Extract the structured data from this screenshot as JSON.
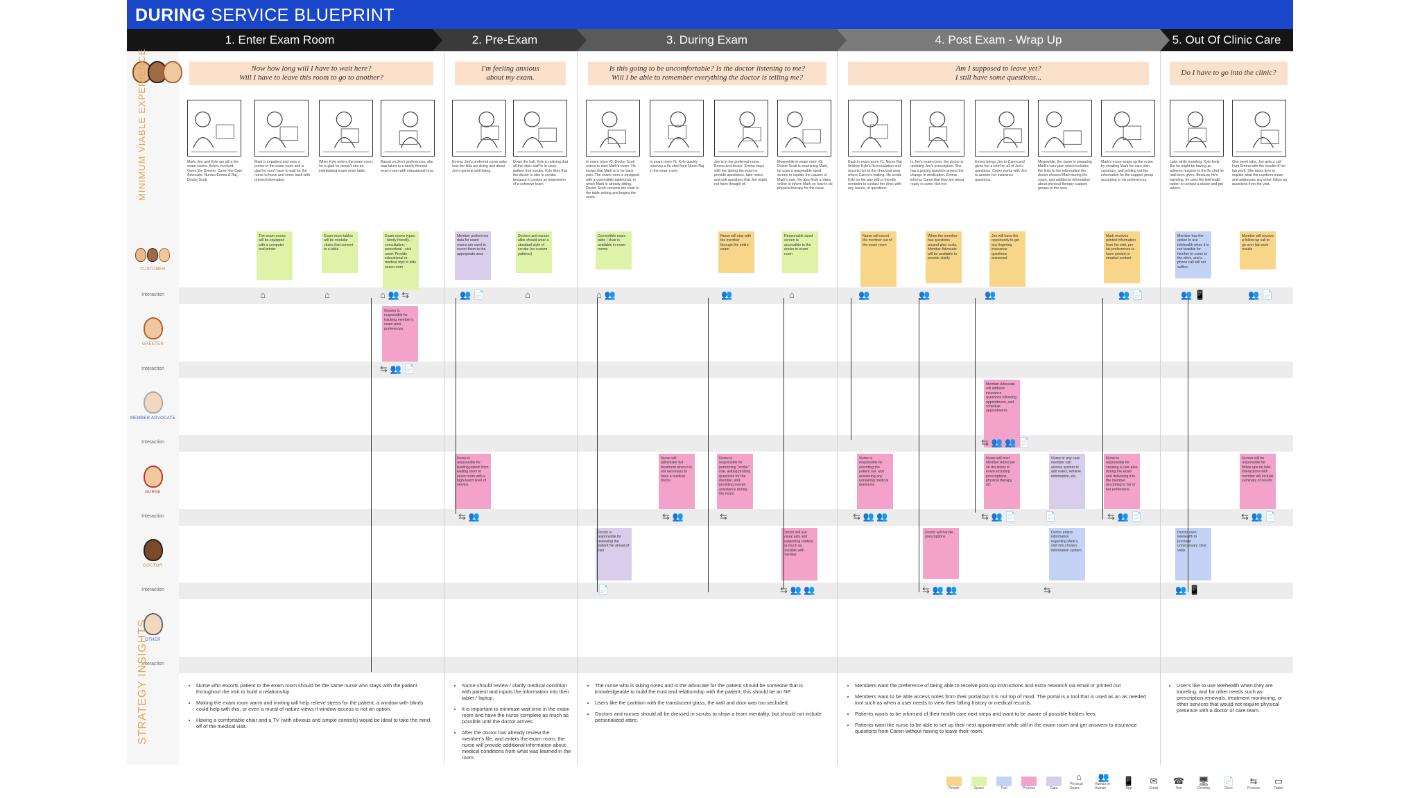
{
  "title": {
    "bold": "DURING",
    "rest": " SERVICE BLUEPRINT"
  },
  "phases": [
    "1. Enter Exam Room",
    "2. Pre-Exam",
    "3. During Exam",
    "4. Post Exam - Wrap Up",
    "5. Out Of Clinic Care"
  ],
  "side_labels": {
    "mve": "MINIMUM VIABLE EXPERIENCE",
    "insights": "STRATEGY INSIGHTS"
  },
  "roles": [
    "CUSTOMER",
    "GREETER",
    "MEMBER ADVOCATE",
    "NURSE",
    "DOCTOR",
    "OTHER"
  ],
  "interaction_label": "Interaction",
  "quotes": [
    "Now how long will I have to wait here?\nWill I have to leave this room to go to another?",
    "I'm feeling anxious\nabout my exam.",
    "Is this going to be uncomfortable? Is the doctor listening to me?\nWill I be able to remember everything the doctor is telling me?",
    "Am I supposed to leave yet?\nI still have some questions...",
    "Do I have to go into the clinic?"
  ],
  "frames": [
    "Mark, Jen and Kyle are all in the exam rooms. Actors involved: Gwen the Greeter, Caren the Care Advocate, Nurses Emma & Raj, Doctor Scott",
    "Mark is impatient and sees a printer in the exam room and is glad he won't have to wait for the nurse to leave and come back with printed information.",
    "When Kyle enters the exam room, he is glad he doesn't see an intimidating exam room table.",
    "Based on Jen's preferences, she was taken to a family themed exam room with educational toys.",
    "Emma, Jen's preferred nurse asks how the kids are doing and about Jen's general well being.",
    "Down the hall, Kyle is noticing that all the clinic staff is in clean pattern free scrubs. Kyle likes that the doctor is also in scrubs because it creates an impression of a cohesive team.",
    "In exam room #2, Doctor Scott enters to start Mark's exam. He knows that Mark is in for back pain. The exam room is equipped with a convertible table/chair, in which Mark is already sitting. Doctor Scott converts the chair to the table setting and begins the exam.",
    "In exam room #1, Kyle quickly receives a flu shot from Nurse Raj in the exam room.",
    "Jen is in her preferred nurse Emma and doctor. Emma stays with her during the exam to provide assistance, take notes, and ask questions that Jen might not have thought of.",
    "Meanwhile in exam room #2, Doctor Scott is examining Mark, he uses a reasonable sized screen to explain the causes of Mark's pain. He also finds a video online to inform Mark on how to do physical therapy for the issue.",
    "Back in exam room #1, Nurse Raj finishes Kyle's flu inoculation and escorts him to the checkout area where Caren is waiting. He sends Kyle on his way with a friendly reminder to contact the clinic with any issues, or questions.",
    "In Jen's exam room, the doctor is updating Jen's prescription. She has a pricing question around the change in medication. Emma informs Caren that they are about ready to come visit her.",
    "Emma brings Jen to Caren and gives her a brief on all of Jen's questions. Caren works with Jen to answer her insurance questions.",
    "Meanwhile, the nurse is preparing Mark's care plan which includes the links to the information the doctor showed Mark during the exam, and additional information about physical therapy support groups in the area.",
    "Mark's nurse wraps up the exam by emailing Mark his care plan summary, and printing out the information for the support group according to his preferences.",
    "Later while traveling, Kyle feels like he might be having an adverse reaction to the flu shot he had been given. Because he's traveling, he uses the telehealth option to contact a doctor and get advice.",
    "One week later, Jen gets a call from Emma with the results of her lab work. She takes time to explain what the numbers mean and addresses any other follow-up questions from the visit."
  ],
  "stickies": {
    "customer": [
      {
        "c": "g",
        "t": "The exam rooms will be equipped with a computer and printer"
      },
      {
        "c": "g",
        "t": "Exam room tables will be modular chairs that convert to a table"
      },
      {
        "c": "g",
        "t": "Exam rooms types: - family friendly, - consultation, - procedural - sick room. Provide educational or medical toys in kids exam room"
      },
      {
        "c": "v",
        "t": "Member preference data for exam rooms are used to escort them to the appropriate area"
      },
      {
        "c": "g",
        "t": "Doctors and nurses alike should wear a standard style of scrubs (no custom patterns)"
      },
      {
        "c": "g",
        "t": "Convertible exam table / chair is available in exam rooms"
      },
      {
        "c": "y",
        "t": "Nurse will stay with the member through the entire exam"
      },
      {
        "c": "g",
        "t": "Reasonable sized screen is accessible to the doctor in exam room"
      },
      {
        "c": "y",
        "t": "Nurse will escort the member out of the exam room"
      },
      {
        "c": "y",
        "t": "When the member has questions around plan costs, Member Advocate will be available to provide clarity"
      },
      {
        "c": "y",
        "t": "Jen will have the opportunity to get any lingering insurance questions answered"
      },
      {
        "c": "y",
        "t": "Mark receives printed information from his visit, per his preferences to have printed or emailed content"
      },
      {
        "c": "b",
        "t": "Member has the option to use telehealth when it is not feasible for him/her to come to the clinic, and a phone call will not suffice."
      },
      {
        "c": "y",
        "t": "Member will receive a follow-up call to go over lab work results"
      }
    ],
    "greeter": [
      {
        "c": "p",
        "t": "Greeter is responsible for tracking member's exam area preferences"
      }
    ],
    "advocate": [
      {
        "c": "p",
        "t": "Member Advocate will address insurance questions following appointment, and schedule appointments"
      }
    ],
    "nurse": [
      {
        "c": "p",
        "t": "Nurse is responsible for leading patient from waiting room to exam room with a high-touch level of service."
      },
      {
        "c": "p",
        "t": "Nurse will administer full treatment when it is not necessary to have a medical doctor"
      },
      {
        "c": "p",
        "t": "Nurse is responsible for performing \"scribe\" role, asking probing questions for the member, and providing overall assistance during the exam."
      },
      {
        "c": "p",
        "t": "Nurse is responsible for escorting the patient out, and answering any remaining medical questions"
      },
      {
        "c": "p",
        "t": "Nurse will brief Member Advocate on decisions in exam including prescriptions, physical therapy, etc."
      },
      {
        "c": "v",
        "t": "Nurse or any care member can access system to add notes, retrieve information, etc."
      },
      {
        "c": "p",
        "t": "Nurse is responsible for creating a care plan during the exam and delivering it to the member according to his or her preference"
      },
      {
        "c": "p",
        "t": "Nurses will be responsible for follow-ups on labs. Interactions with member will include summary of results"
      }
    ],
    "doctor": [
      {
        "c": "v",
        "t": "Doctor is responsible for reviewing the patient file ahead of visit"
      },
      {
        "c": "p",
        "t": "Doctor will use visual aids and supporting content as much as possible with member"
      },
      {
        "c": "p",
        "t": "Doctor will handle prescriptions"
      },
      {
        "c": "b",
        "t": "Doctor enters information regarding Mark's visit into chosen information system."
      },
      {
        "c": "b",
        "t": "Doctor uses telehealth to preclude unnecessary clinic visits"
      }
    ]
  },
  "insights": [
    [
      "Nurse who escorts patient to the exam room should be the same nurse who stays with the patient throughout the visit to build a relationship.",
      "Making the exam room warm and inviting will help relieve stress for the patient, a window with blinds could help with this, or even a mural of nature views if window access is not an option.",
      "Having a comfortable chair and a TV (with obvious and simple controls) would be ideal to take the mind off of the medical visit."
    ],
    [
      "Nurse should review / clarify medical condition with patient and inputs the information into their tablet / laptop.",
      "It is important to minimize wait time in the exam room and have the nurse complete as much as possible until the doctor arrives.",
      "After the doctor has already review the member's file, and enters the exam room, the nurse will provide additional information about medical conditions from what was learned in the room."
    ],
    [
      "The nurse who is taking notes and is the advocate for the patient should be someone that is knowledgeable to build the trust and relationship with the patient, this should be an NP.",
      "Users like the partition with the translucent glass, the wall and door was too secluded.",
      "Doctors and nurses should all be dressed in scrubs to show a team mentality, but should not include personalized attire."
    ],
    [
      "Members want the preference of being able to receive post-op instructions and extra research via email or printed out",
      "Members want to be able access notes from their portal but it is not top of mind. The portal is a tool that is used as an as needed tool such as when a user needs to view their billing history or medical records.",
      "Patients wants to be informed of their health care next steps and want to be aware of possible hidden fees.",
      "Patients want the nurse to be able to set up their next appointment while still in the exam room and get answers to insurance questions from Caren without having to leave their room."
    ],
    [
      "User's like to use telehealth when they are traveling, and for other needs such as: prescription renewals, treatment monitoring, or other services that would not require physical presence with a doctor or care team."
    ]
  ],
  "legend": [
    {
      "k": "sw",
      "c": "#f7d68a",
      "l": "People"
    },
    {
      "k": "sw",
      "c": "#dff3a8",
      "l": "Space"
    },
    {
      "k": "sw",
      "c": "#c4d3f5",
      "l": "Tool"
    },
    {
      "k": "sw",
      "c": "#f3a3c9",
      "l": "Process"
    },
    {
      "k": "sw",
      "c": "#d8cdea",
      "l": "Data"
    },
    {
      "k": "gl",
      "g": "⌂",
      "l": "Physical Space"
    },
    {
      "k": "gl",
      "g": "👥",
      "l": "Human to Human"
    },
    {
      "k": "gl",
      "g": "📱",
      "l": "App"
    },
    {
      "k": "gl",
      "g": "✉",
      "l": "Email"
    },
    {
      "k": "gl",
      "g": "☎",
      "l": "Text"
    },
    {
      "k": "gl",
      "g": "🖥",
      "l": "Desktop"
    },
    {
      "k": "gl",
      "g": "📄",
      "l": "Docs"
    },
    {
      "k": "gl",
      "g": "⇆",
      "l": "Process"
    },
    {
      "k": "gl",
      "g": "▭",
      "l": "Tablet"
    }
  ]
}
